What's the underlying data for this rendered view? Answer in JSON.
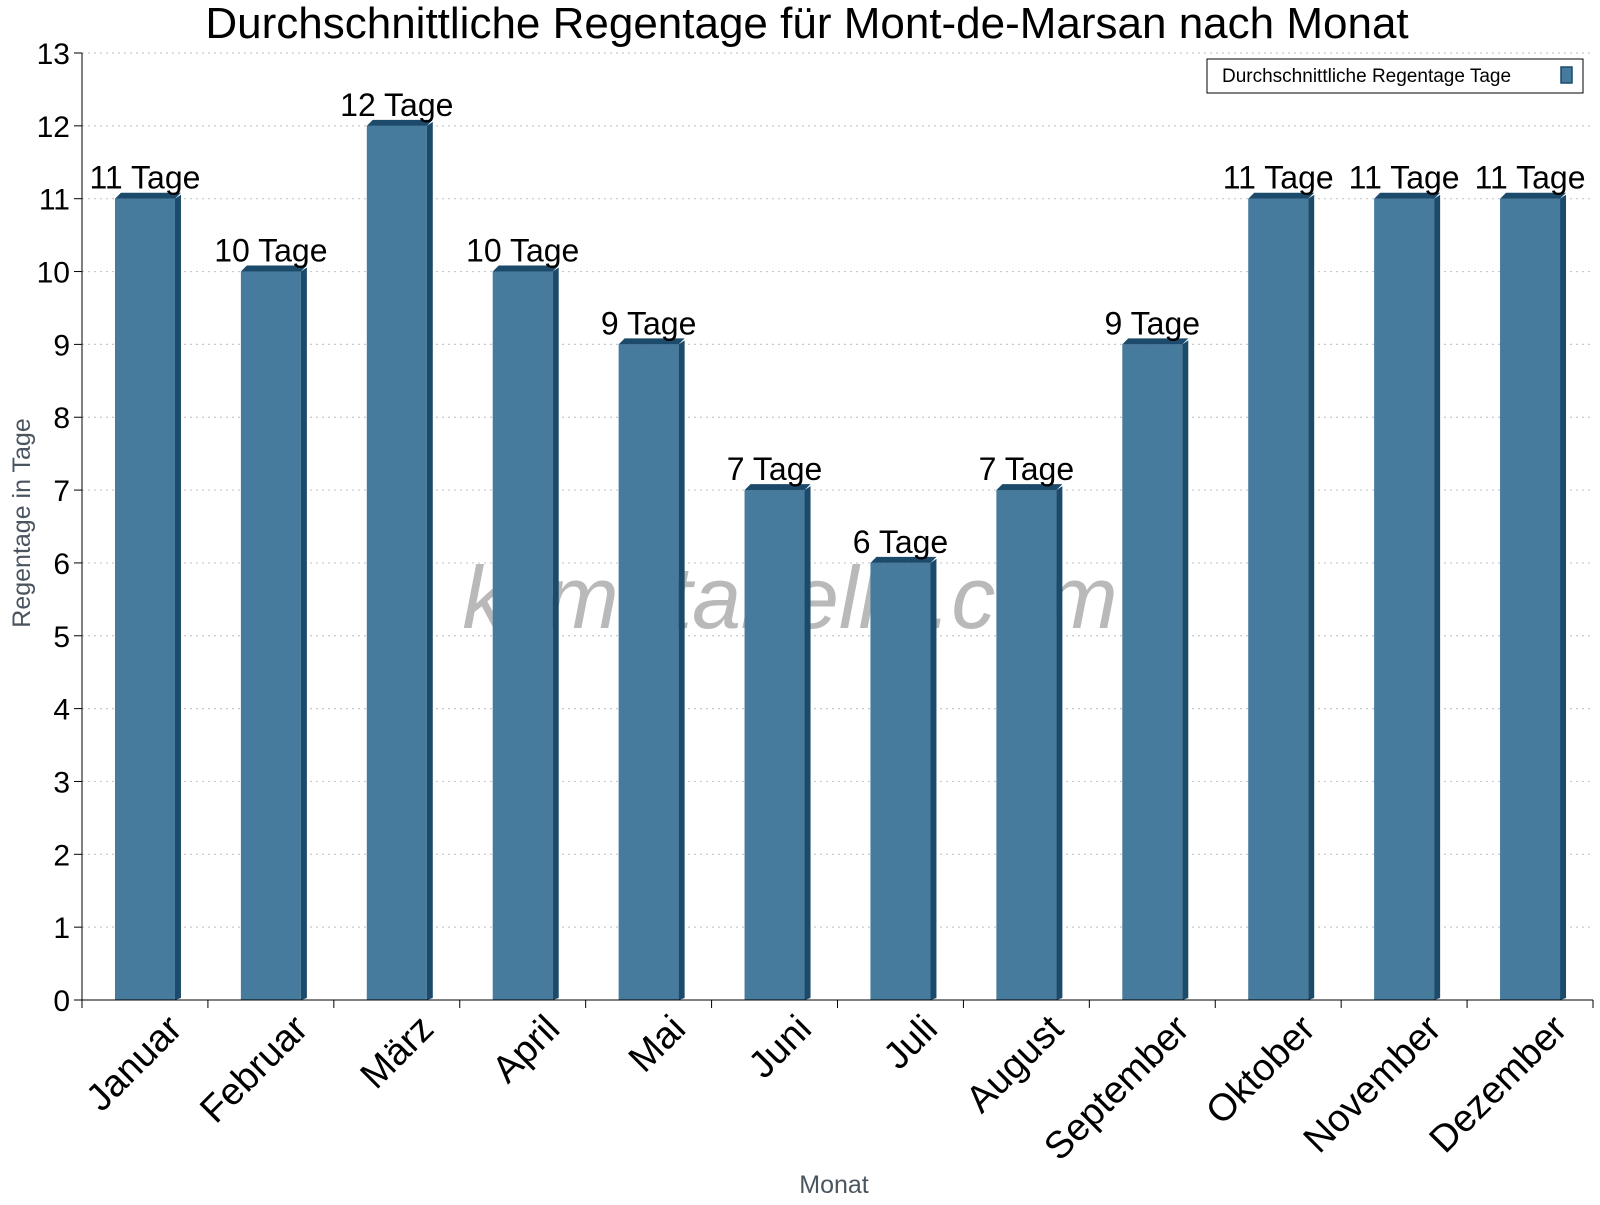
{
  "chart_data": {
    "type": "bar",
    "title": "Durchschnittliche Regentage für Mont-de-Marsan nach Monat",
    "xlabel": "Monat",
    "ylabel": "Regentage in Tage",
    "categories": [
      "Januar",
      "Februar",
      "März",
      "April",
      "Mai",
      "Juni",
      "Juli",
      "August",
      "September",
      "Oktober",
      "November",
      "Dezember"
    ],
    "series": [
      {
        "name": "Durchschnittliche Regentage Tage",
        "values": [
          11,
          10,
          12,
          10,
          9,
          7,
          6,
          7,
          9,
          11,
          11,
          11
        ],
        "labels": [
          "11 Tage",
          "10 Tage",
          "12 Tage",
          "10 Tage",
          "9 Tage",
          "7 Tage",
          "6 Tage",
          "7 Tage",
          "9 Tage",
          "11 Tage",
          "11 Tage",
          "11 Tage"
        ]
      }
    ],
    "ylim": [
      0,
      13
    ],
    "yticks": [
      "0",
      "1",
      "2",
      "3",
      "4",
      "5",
      "6",
      "7",
      "8",
      "9",
      "10",
      "11",
      "12",
      "13"
    ],
    "grid": true,
    "legend_position": "top-right",
    "bar_color": "#467b9d",
    "bar_side_color": "#1b4a6b",
    "watermark": "klimatabelle.com"
  }
}
